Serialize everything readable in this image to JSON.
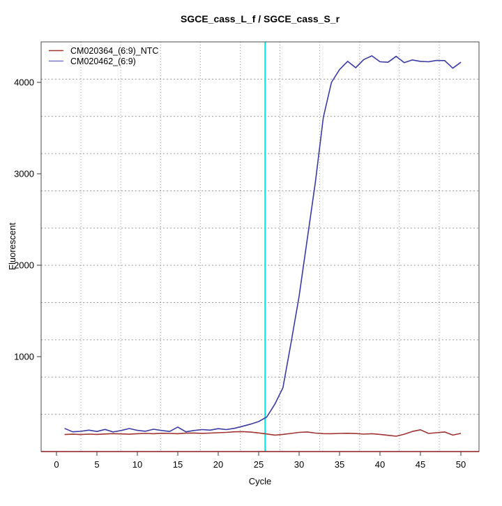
{
  "title": "SGCE_cass_L_f / SGCE_cass_S_r",
  "x_axis": {
    "label": "Cycle",
    "ticks": [
      0,
      5,
      10,
      15,
      20,
      25,
      30,
      35,
      40,
      45,
      50
    ]
  },
  "y_axis": {
    "label": "Fluorescent",
    "ticks": [
      1000,
      2000,
      3000,
      4000
    ]
  },
  "legend": {
    "items": [
      {
        "label": "CM020364_(6:9)_NTC",
        "color": "#A03232"
      },
      {
        "label": "CM020462_(6:9)",
        "color": "#7A7AC8"
      }
    ]
  },
  "colors": {
    "ntc_series": "#A03232",
    "sample_series": "#3A3AA5",
    "threshold_line": "#00E5E5",
    "grid": "#999999",
    "frame": "#4A4A4A",
    "baseline_axis": "#8B1A1A",
    "tick": "#555555"
  },
  "chart_data": {
    "type": "line",
    "title": "SGCE_cass_L_f / SGCE_cass_S_r",
    "xlabel": "Cycle",
    "ylabel": "Fluorescent",
    "xlim": [
      -1,
      52
    ],
    "ylim": [
      -40,
      4440
    ],
    "x_ticks": [
      0,
      5,
      10,
      15,
      20,
      25,
      30,
      35,
      40,
      45,
      50
    ],
    "y_ticks": [
      1000,
      2000,
      3000,
      4000
    ],
    "grid": "dotted 11x11 cells, not aligned to ticks",
    "legend_position": "top-left, no box",
    "threshold_line": {
      "orientation": "vertical",
      "x": 25.8,
      "color": "#00E5E5"
    },
    "x": [
      1,
      2,
      3,
      4,
      5,
      6,
      7,
      8,
      9,
      10,
      11,
      12,
      13,
      14,
      15,
      16,
      17,
      18,
      19,
      20,
      21,
      22,
      23,
      24,
      25,
      26,
      27,
      28,
      29,
      30,
      31,
      32,
      33,
      34,
      35,
      36,
      37,
      38,
      39,
      40,
      41,
      42,
      43,
      44,
      45,
      46,
      47,
      48,
      49,
      50
    ],
    "series": [
      {
        "name": "CM020364_(6:9)_NTC",
        "color": "#A03232",
        "values": [
          148,
          152,
          148,
          153,
          150,
          154,
          158,
          155,
          152,
          157,
          160,
          157,
          162,
          160,
          157,
          163,
          165,
          161,
          164,
          168,
          172,
          178,
          180,
          175,
          166,
          154,
          142,
          150,
          160,
          172,
          176,
          164,
          158,
          157,
          160,
          162,
          159,
          153,
          157,
          150,
          140,
          130,
          152,
          182,
          200,
          160,
          168,
          176,
          142,
          160
        ]
      },
      {
        "name": "CM020462_(6:9)",
        "color": "#3A3AA5",
        "values": [
          215,
          178,
          183,
          196,
          182,
          204,
          176,
          192,
          214,
          194,
          184,
          206,
          192,
          182,
          230,
          178,
          192,
          202,
          196,
          212,
          202,
          216,
          238,
          262,
          290,
          340,
          480,
          660,
          1150,
          1660,
          2280,
          2900,
          3620,
          4000,
          4140,
          4230,
          4160,
          4250,
          4290,
          4225,
          4220,
          4285,
          4215,
          4245,
          4230,
          4225,
          4240,
          4238,
          4155,
          4220
        ]
      }
    ]
  }
}
